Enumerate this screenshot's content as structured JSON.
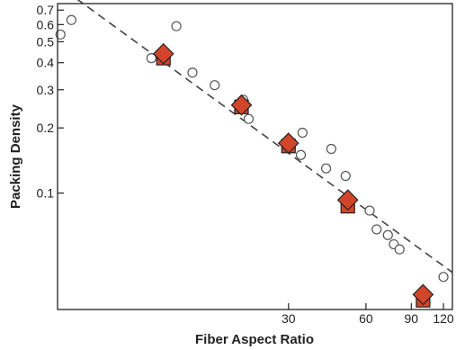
{
  "chart_data": {
    "type": "scatter",
    "xlabel": "Fiber Aspect Ratio",
    "ylabel": "Packing Density",
    "xscale": "log",
    "yscale": "log",
    "xlim": [
      3.8,
      130
    ],
    "ylim": [
      0.029,
      0.75
    ],
    "grid": false,
    "x_ticks": [
      {
        "value": 30,
        "label": "30"
      },
      {
        "value": 60,
        "label": "60"
      },
      {
        "value": 90,
        "label": "90"
      },
      {
        "value": 120,
        "label": "120"
      }
    ],
    "y_ticks": [
      {
        "value": 0.1,
        "label": "0.1"
      },
      {
        "value": 0.2,
        "label": "0.2"
      },
      {
        "value": 0.3,
        "label": "0.3"
      },
      {
        "value": 0.4,
        "label": "0.4"
      },
      {
        "value": 0.5,
        "label": "0.5"
      },
      {
        "value": 0.6,
        "label": "0.6"
      },
      {
        "value": 0.7,
        "label": "0.7"
      }
    ],
    "series": [
      {
        "marker": "open-circle",
        "color": "#555555",
        "points": [
          [
            3.9,
            0.54
          ],
          [
            4.3,
            0.63
          ],
          [
            8.8,
            0.42
          ],
          [
            11.0,
            0.59
          ],
          [
            12.7,
            0.36
          ],
          [
            15.5,
            0.315
          ],
          [
            20.0,
            0.27
          ],
          [
            21.0,
            0.22
          ],
          [
            33.5,
            0.15
          ],
          [
            34.0,
            0.19
          ],
          [
            42.0,
            0.13
          ],
          [
            44.0,
            0.16
          ],
          [
            50.0,
            0.12
          ],
          [
            50.5,
            0.085
          ],
          [
            62.0,
            0.083
          ],
          [
            66.0,
            0.068
          ],
          [
            73.0,
            0.064
          ],
          [
            77.0,
            0.058
          ],
          [
            81.0,
            0.055
          ],
          [
            120.0,
            0.041
          ]
        ]
      },
      {
        "marker": "filled-square",
        "color": "#d2452b",
        "points": [
          [
            9.8,
            0.42
          ],
          [
            19.7,
            0.25
          ],
          [
            30.0,
            0.165
          ],
          [
            51.0,
            0.087
          ],
          [
            100.0,
            0.032
          ]
        ]
      },
      {
        "marker": "filled-diamond",
        "color": "#d2452b",
        "points": [
          [
            9.8,
            0.44
          ],
          [
            19.7,
            0.255
          ],
          [
            30.0,
            0.17
          ],
          [
            51.0,
            0.093
          ],
          [
            100.0,
            0.034
          ]
        ]
      }
    ],
    "fit_line": {
      "style": "dashed",
      "color": "#444444",
      "points": [
        [
          4.5,
          0.79
        ],
        [
          130,
          0.043
        ]
      ]
    }
  }
}
